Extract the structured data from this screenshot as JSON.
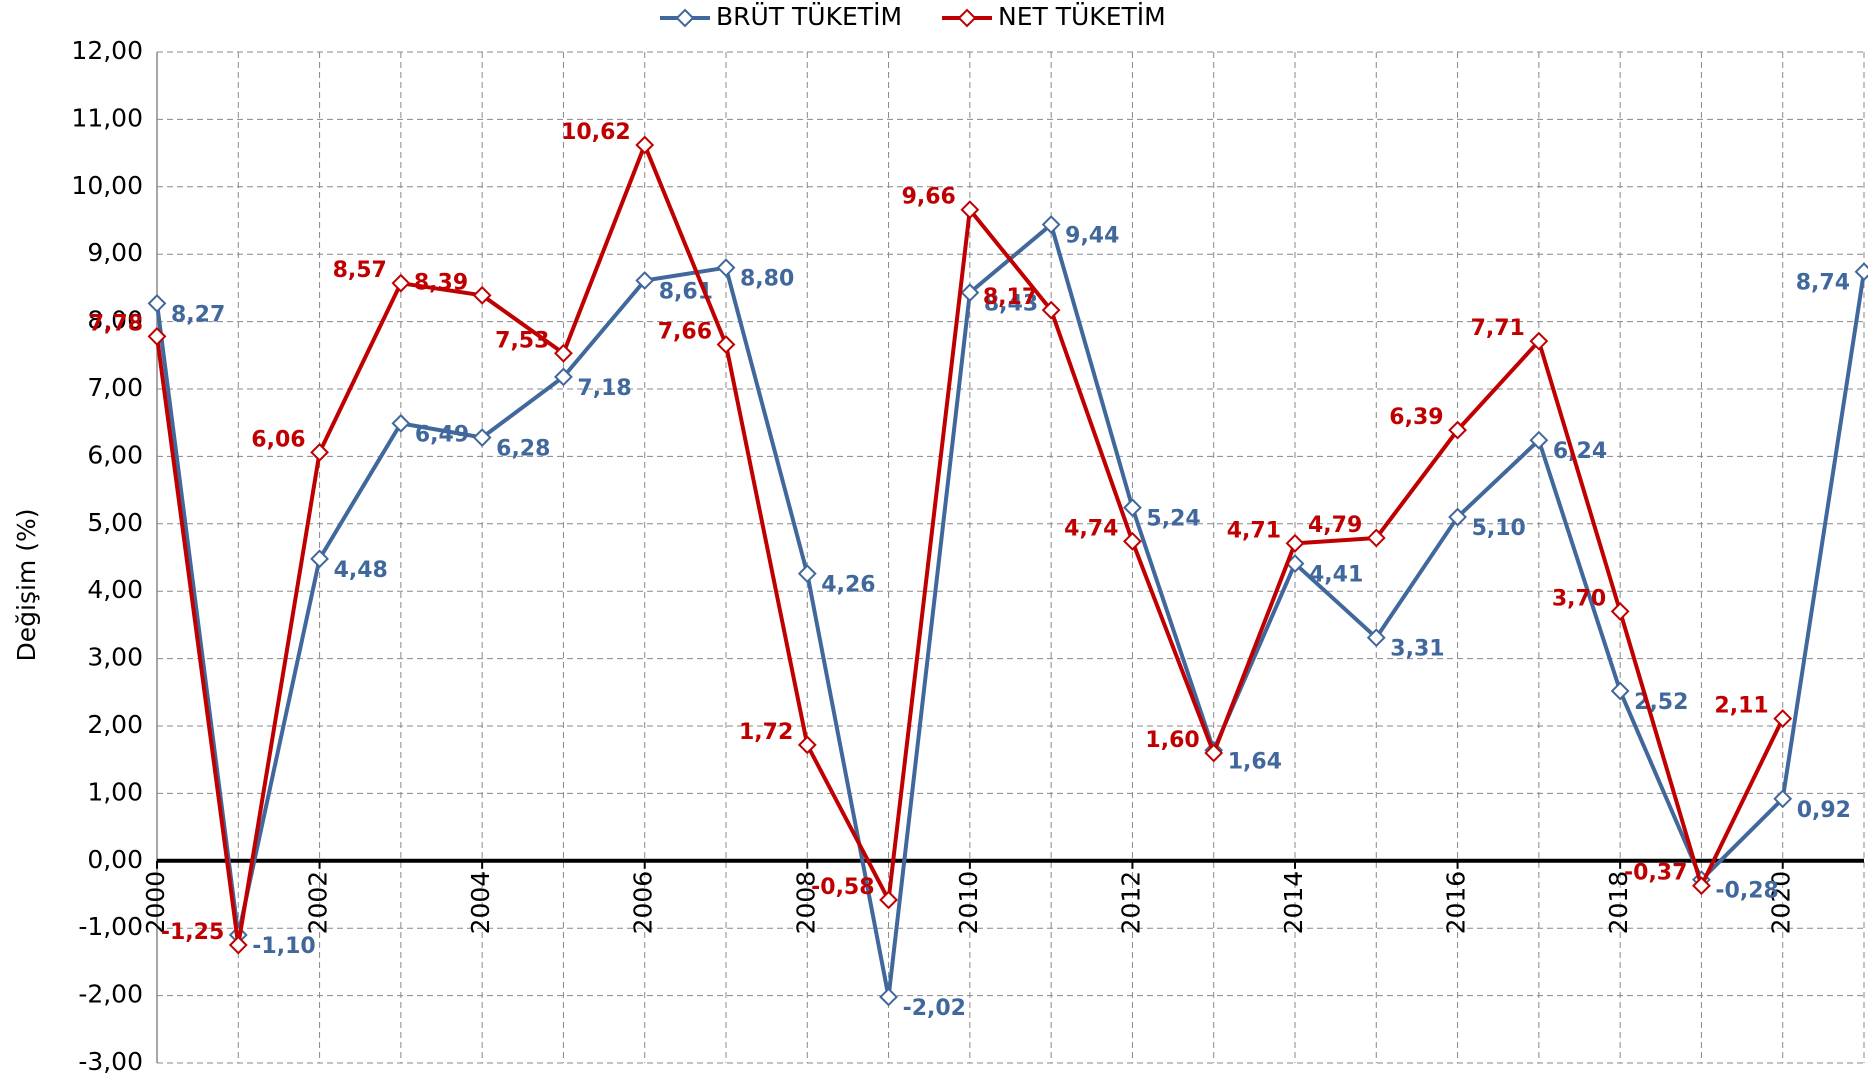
{
  "chart_data": {
    "type": "line",
    "y_label": "Değişim (%)",
    "legend": "top",
    "grid": true,
    "x": [
      2000,
      2001,
      2002,
      2003,
      2004,
      2005,
      2006,
      2007,
      2008,
      2009,
      2010,
      2011,
      2012,
      2013,
      2014,
      2015,
      2016,
      2017,
      2018,
      2019,
      2020,
      2021
    ],
    "xlim": [
      2000,
      2021
    ],
    "xticks": [
      2000,
      2002,
      2004,
      2006,
      2008,
      2010,
      2012,
      2014,
      2016,
      2018,
      2020
    ],
    "ylim": [
      -3,
      12
    ],
    "yticks": [
      {
        "value": -3,
        "label": "-3,00"
      },
      {
        "value": -2,
        "label": "-2,00"
      },
      {
        "value": -1,
        "label": "-1,00"
      },
      {
        "value": 0,
        "label": "0,00"
      },
      {
        "value": 1,
        "label": "1,00"
      },
      {
        "value": 2,
        "label": "2,00"
      },
      {
        "value": 3,
        "label": "3,00"
      },
      {
        "value": 4,
        "label": "4,00"
      },
      {
        "value": 5,
        "label": "5,00"
      },
      {
        "value": 6,
        "label": "6,00"
      },
      {
        "value": 7,
        "label": "7,00"
      },
      {
        "value": 8,
        "label": "8,00"
      },
      {
        "value": 9,
        "label": "9,00"
      },
      {
        "value": 10,
        "label": "10,00"
      },
      {
        "value": 11,
        "label": "11,00"
      },
      {
        "value": 12,
        "label": "12,00"
      }
    ],
    "series": [
      {
        "name": "BRÜT TÜKETİM",
        "color": "#41689c",
        "values": [
          8.27,
          -1.1,
          4.48,
          6.49,
          6.28,
          7.18,
          8.61,
          8.8,
          4.26,
          -2.02,
          8.43,
          9.44,
          5.24,
          1.64,
          4.41,
          3.31,
          5.1,
          6.24,
          2.52,
          -0.28,
          0.92,
          8.74
        ],
        "value_labels": [
          "8,27",
          "-1,10",
          "4,48",
          "6,49",
          "6,28",
          "7,18",
          "8,61",
          "8,80",
          "4,26",
          "-2,02",
          "8,43",
          "9,44",
          "5,24",
          "1,64",
          "4,41",
          "3,31",
          "5,10",
          "6,24",
          "2,52",
          "-0,28",
          "0,92",
          "8,74"
        ]
      },
      {
        "name": "NET TÜKETİM",
        "color": "#c00000",
        "values": [
          7.78,
          -1.25,
          6.06,
          8.57,
          8.39,
          7.53,
          10.62,
          7.66,
          1.72,
          -0.58,
          9.66,
          8.17,
          4.74,
          1.6,
          4.71,
          4.79,
          6.39,
          7.71,
          3.7,
          -0.37,
          2.11,
          null
        ],
        "value_labels": [
          "7,78",
          "-1,25",
          "6,06",
          "8,57",
          "8,39",
          "7,53",
          "10,62",
          "7,66",
          "1,72",
          "-0,58",
          "9,66",
          "8,17",
          "4,74",
          "1,60",
          "4,71",
          "4,79",
          "6,39",
          "7,71",
          "3,70",
          "-0,37",
          "2,11",
          null
        ]
      }
    ]
  }
}
